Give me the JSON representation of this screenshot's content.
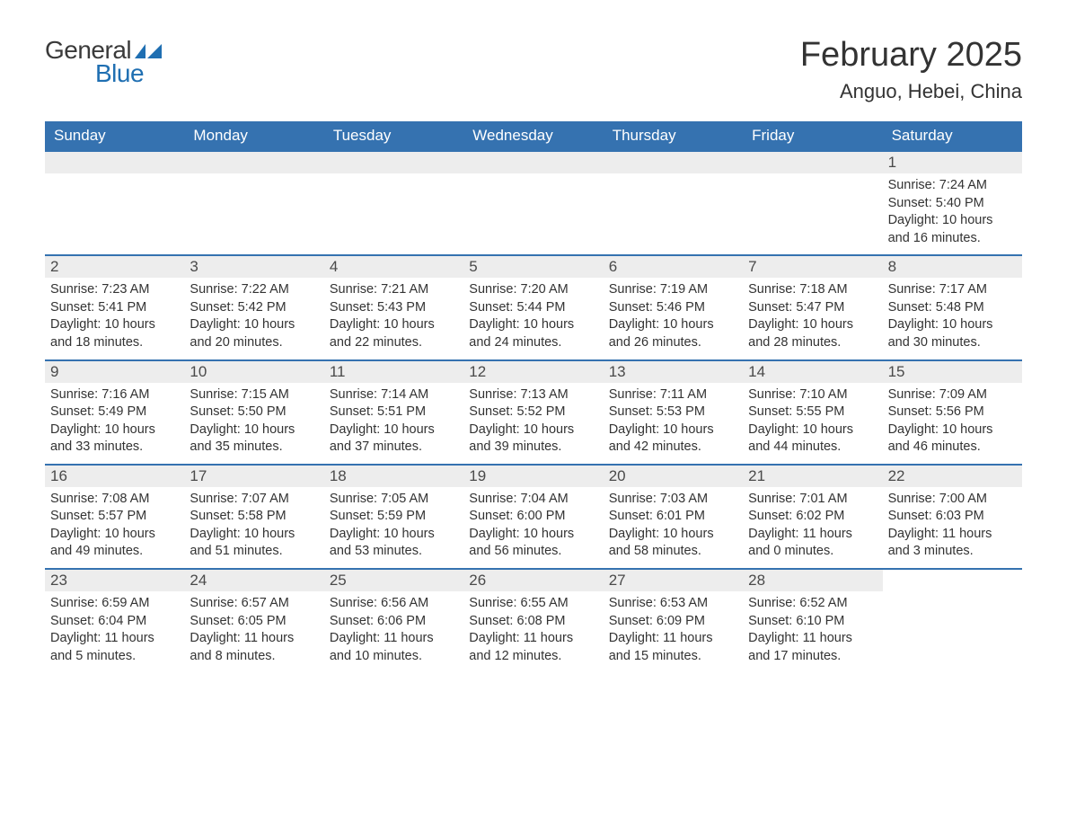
{
  "logo": {
    "text_general": "General",
    "text_blue": "Blue"
  },
  "title": "February 2025",
  "location": "Anguo, Hebei, China",
  "colors": {
    "header_bg": "#3572b0",
    "header_text": "#ffffff",
    "daynum_bg": "#ededed",
    "row_border": "#3572b0",
    "body_text": "#333333",
    "logo_blue": "#1f6fb2"
  },
  "weekdays": [
    "Sunday",
    "Monday",
    "Tuesday",
    "Wednesday",
    "Thursday",
    "Friday",
    "Saturday"
  ],
  "weeks": [
    [
      null,
      null,
      null,
      null,
      null,
      null,
      {
        "n": "1",
        "sunrise": "Sunrise: 7:24 AM",
        "sunset": "Sunset: 5:40 PM",
        "daylight": "Daylight: 10 hours and 16 minutes."
      }
    ],
    [
      {
        "n": "2",
        "sunrise": "Sunrise: 7:23 AM",
        "sunset": "Sunset: 5:41 PM",
        "daylight": "Daylight: 10 hours and 18 minutes."
      },
      {
        "n": "3",
        "sunrise": "Sunrise: 7:22 AM",
        "sunset": "Sunset: 5:42 PM",
        "daylight": "Daylight: 10 hours and 20 minutes."
      },
      {
        "n": "4",
        "sunrise": "Sunrise: 7:21 AM",
        "sunset": "Sunset: 5:43 PM",
        "daylight": "Daylight: 10 hours and 22 minutes."
      },
      {
        "n": "5",
        "sunrise": "Sunrise: 7:20 AM",
        "sunset": "Sunset: 5:44 PM",
        "daylight": "Daylight: 10 hours and 24 minutes."
      },
      {
        "n": "6",
        "sunrise": "Sunrise: 7:19 AM",
        "sunset": "Sunset: 5:46 PM",
        "daylight": "Daylight: 10 hours and 26 minutes."
      },
      {
        "n": "7",
        "sunrise": "Sunrise: 7:18 AM",
        "sunset": "Sunset: 5:47 PM",
        "daylight": "Daylight: 10 hours and 28 minutes."
      },
      {
        "n": "8",
        "sunrise": "Sunrise: 7:17 AM",
        "sunset": "Sunset: 5:48 PM",
        "daylight": "Daylight: 10 hours and 30 minutes."
      }
    ],
    [
      {
        "n": "9",
        "sunrise": "Sunrise: 7:16 AM",
        "sunset": "Sunset: 5:49 PM",
        "daylight": "Daylight: 10 hours and 33 minutes."
      },
      {
        "n": "10",
        "sunrise": "Sunrise: 7:15 AM",
        "sunset": "Sunset: 5:50 PM",
        "daylight": "Daylight: 10 hours and 35 minutes."
      },
      {
        "n": "11",
        "sunrise": "Sunrise: 7:14 AM",
        "sunset": "Sunset: 5:51 PM",
        "daylight": "Daylight: 10 hours and 37 minutes."
      },
      {
        "n": "12",
        "sunrise": "Sunrise: 7:13 AM",
        "sunset": "Sunset: 5:52 PM",
        "daylight": "Daylight: 10 hours and 39 minutes."
      },
      {
        "n": "13",
        "sunrise": "Sunrise: 7:11 AM",
        "sunset": "Sunset: 5:53 PM",
        "daylight": "Daylight: 10 hours and 42 minutes."
      },
      {
        "n": "14",
        "sunrise": "Sunrise: 7:10 AM",
        "sunset": "Sunset: 5:55 PM",
        "daylight": "Daylight: 10 hours and 44 minutes."
      },
      {
        "n": "15",
        "sunrise": "Sunrise: 7:09 AM",
        "sunset": "Sunset: 5:56 PM",
        "daylight": "Daylight: 10 hours and 46 minutes."
      }
    ],
    [
      {
        "n": "16",
        "sunrise": "Sunrise: 7:08 AM",
        "sunset": "Sunset: 5:57 PM",
        "daylight": "Daylight: 10 hours and 49 minutes."
      },
      {
        "n": "17",
        "sunrise": "Sunrise: 7:07 AM",
        "sunset": "Sunset: 5:58 PM",
        "daylight": "Daylight: 10 hours and 51 minutes."
      },
      {
        "n": "18",
        "sunrise": "Sunrise: 7:05 AM",
        "sunset": "Sunset: 5:59 PM",
        "daylight": "Daylight: 10 hours and 53 minutes."
      },
      {
        "n": "19",
        "sunrise": "Sunrise: 7:04 AM",
        "sunset": "Sunset: 6:00 PM",
        "daylight": "Daylight: 10 hours and 56 minutes."
      },
      {
        "n": "20",
        "sunrise": "Sunrise: 7:03 AM",
        "sunset": "Sunset: 6:01 PM",
        "daylight": "Daylight: 10 hours and 58 minutes."
      },
      {
        "n": "21",
        "sunrise": "Sunrise: 7:01 AM",
        "sunset": "Sunset: 6:02 PM",
        "daylight": "Daylight: 11 hours and 0 minutes."
      },
      {
        "n": "22",
        "sunrise": "Sunrise: 7:00 AM",
        "sunset": "Sunset: 6:03 PM",
        "daylight": "Daylight: 11 hours and 3 minutes."
      }
    ],
    [
      {
        "n": "23",
        "sunrise": "Sunrise: 6:59 AM",
        "sunset": "Sunset: 6:04 PM",
        "daylight": "Daylight: 11 hours and 5 minutes."
      },
      {
        "n": "24",
        "sunrise": "Sunrise: 6:57 AM",
        "sunset": "Sunset: 6:05 PM",
        "daylight": "Daylight: 11 hours and 8 minutes."
      },
      {
        "n": "25",
        "sunrise": "Sunrise: 6:56 AM",
        "sunset": "Sunset: 6:06 PM",
        "daylight": "Daylight: 11 hours and 10 minutes."
      },
      {
        "n": "26",
        "sunrise": "Sunrise: 6:55 AM",
        "sunset": "Sunset: 6:08 PM",
        "daylight": "Daylight: 11 hours and 12 minutes."
      },
      {
        "n": "27",
        "sunrise": "Sunrise: 6:53 AM",
        "sunset": "Sunset: 6:09 PM",
        "daylight": "Daylight: 11 hours and 15 minutes."
      },
      {
        "n": "28",
        "sunrise": "Sunrise: 6:52 AM",
        "sunset": "Sunset: 6:10 PM",
        "daylight": "Daylight: 11 hours and 17 minutes."
      },
      null
    ]
  ]
}
